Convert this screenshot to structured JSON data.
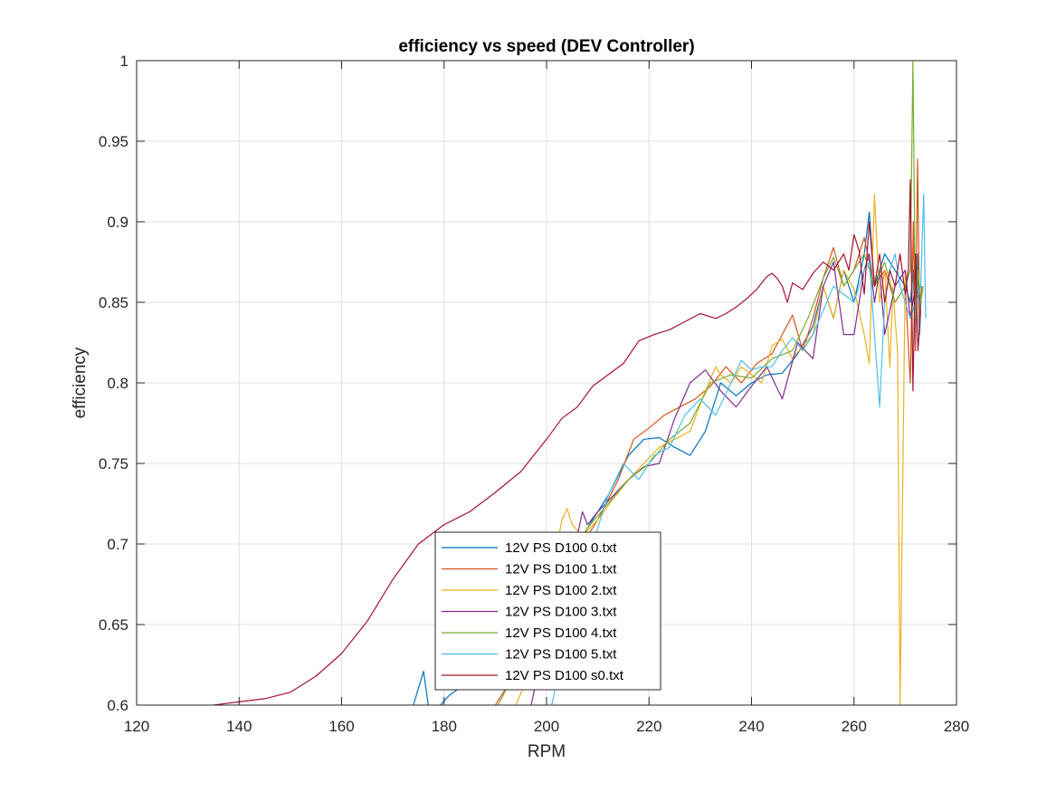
{
  "chart_data": {
    "type": "line",
    "title": "efficiency vs speed (DEV Controller)",
    "xlabel": "RPM",
    "ylabel": "efficiency",
    "xlim": [
      120,
      280
    ],
    "ylim": [
      0.6,
      1
    ],
    "xticks": [
      "120",
      "140",
      "160",
      "180",
      "200",
      "220",
      "240",
      "260",
      "280"
    ],
    "yticks": [
      "0.6",
      "0.65",
      "0.7",
      "0.75",
      "0.8",
      "0.85",
      "0.9",
      "0.95",
      "1"
    ],
    "grid": true,
    "legend_position": "bottom-center",
    "series": [
      {
        "name": "12V PS D100 0.txt",
        "color": "#0072BD",
        "x": [
          174,
          176,
          177,
          178,
          179,
          181,
          185,
          190,
          195,
          200,
          205,
          208,
          212,
          216,
          219,
          222,
          225,
          228,
          231,
          234,
          237,
          240,
          243,
          246,
          249,
          252,
          254,
          256,
          258,
          260,
          262,
          263,
          264,
          266,
          268,
          270,
          271,
          271.6,
          272,
          272.4,
          272.8,
          273.2
        ],
        "y": [
          0.6,
          0.621,
          0.598,
          0.6,
          0.599,
          0.606,
          0.615,
          0.63,
          0.648,
          0.672,
          0.69,
          0.71,
          0.73,
          0.755,
          0.765,
          0.766,
          0.76,
          0.755,
          0.77,
          0.8,
          0.792,
          0.8,
          0.805,
          0.806,
          0.818,
          0.835,
          0.86,
          0.84,
          0.87,
          0.85,
          0.88,
          0.906,
          0.86,
          0.88,
          0.87,
          0.86,
          0.85,
          0.87,
          0.82,
          0.88,
          0.83,
          0.86
        ]
      },
      {
        "name": "12V PS D100 1.txt",
        "color": "#D95319",
        "x": [
          190,
          195,
          200,
          203,
          206,
          210,
          214,
          217,
          220,
          223,
          226,
          229,
          232,
          235,
          238,
          241,
          244,
          247,
          248,
          250,
          252,
          254,
          256,
          258,
          260,
          262,
          264,
          266,
          268,
          270,
          271,
          271.6,
          272,
          272.4,
          272.8,
          273.2
        ],
        "y": [
          0.6,
          0.625,
          0.655,
          0.675,
          0.695,
          0.715,
          0.74,
          0.765,
          0.772,
          0.78,
          0.785,
          0.79,
          0.798,
          0.81,
          0.8,
          0.812,
          0.818,
          0.836,
          0.842,
          0.82,
          0.84,
          0.865,
          0.884,
          0.86,
          0.87,
          0.89,
          0.86,
          0.87,
          0.85,
          0.86,
          0.8,
          0.9,
          0.82,
          0.939,
          0.84,
          0.86
        ]
      },
      {
        "name": "12V PS D100 2.txt",
        "color": "#EDB120",
        "x": [
          194,
          197,
          200,
          203,
          204,
          205,
          207,
          210,
          213,
          216,
          219,
          222,
          225,
          228,
          231,
          233,
          234,
          236,
          238,
          240,
          242,
          244,
          246,
          248,
          250,
          252,
          254,
          256,
          258,
          260,
          262,
          263,
          264,
          265,
          266,
          267,
          267.6,
          268,
          268.5,
          269,
          270,
          271,
          272,
          273
        ],
        "y": [
          0.6,
          0.622,
          0.665,
          0.715,
          0.722,
          0.712,
          0.705,
          0.715,
          0.728,
          0.74,
          0.75,
          0.76,
          0.765,
          0.77,
          0.795,
          0.81,
          0.805,
          0.8,
          0.81,
          0.805,
          0.8,
          0.823,
          0.827,
          0.815,
          0.823,
          0.83,
          0.86,
          0.84,
          0.87,
          0.858,
          0.83,
          0.812,
          0.917,
          0.85,
          0.87,
          0.81,
          0.86,
          0.84,
          0.82,
          0.6,
          0.87,
          0.84,
          0.86,
          0.85
        ]
      },
      {
        "name": "12V PS D100 3.txt",
        "color": "#7E2F8E",
        "x": [
          197,
          200,
          203,
          206,
          207,
          208,
          210,
          213,
          216,
          219,
          222,
          225,
          228,
          231,
          234,
          237,
          240,
          243,
          246,
          249,
          252,
          254,
          256,
          258,
          260,
          261,
          262,
          263,
          264,
          265,
          266,
          268,
          270,
          271,
          272,
          273
        ],
        "y": [
          0.6,
          0.645,
          0.68,
          0.705,
          0.72,
          0.712,
          0.72,
          0.73,
          0.74,
          0.748,
          0.75,
          0.778,
          0.8,
          0.808,
          0.795,
          0.785,
          0.798,
          0.81,
          0.79,
          0.825,
          0.815,
          0.86,
          0.875,
          0.83,
          0.83,
          0.85,
          0.87,
          0.88,
          0.85,
          0.87,
          0.83,
          0.86,
          0.87,
          0.84,
          0.86,
          0.85
        ]
      },
      {
        "name": "12V PS D100 4.txt",
        "color": "#77AC30",
        "x": [
          190.5,
          193,
          196,
          200,
          204,
          208,
          212,
          216,
          220,
          224,
          228,
          232,
          236,
          240,
          244,
          248,
          251,
          254,
          256,
          258,
          260,
          262,
          264,
          266,
          268,
          270,
          271,
          271.5,
          272,
          272.5,
          273,
          273.5
        ],
        "y": [
          0.6,
          0.615,
          0.64,
          0.67,
          0.69,
          0.71,
          0.725,
          0.74,
          0.75,
          0.765,
          0.775,
          0.8,
          0.805,
          0.803,
          0.815,
          0.82,
          0.84,
          0.865,
          0.878,
          0.86,
          0.87,
          0.88,
          0.86,
          0.875,
          0.85,
          0.86,
          0.87,
          1.0,
          0.84,
          0.87,
          0.85,
          0.86
        ]
      },
      {
        "name": "12V PS D100 5.txt",
        "color": "#4DBEEE",
        "x": [
          201,
          203,
          206,
          209,
          212,
          215,
          218,
          221,
          224,
          227,
          230,
          233,
          236,
          238,
          240,
          242,
          244,
          246,
          248,
          250,
          252,
          254,
          256,
          258,
          260,
          262,
          263,
          264,
          265,
          266,
          267,
          268,
          269,
          270,
          271,
          272,
          273,
          273.6,
          274
        ],
        "y": [
          0.6,
          0.63,
          0.665,
          0.7,
          0.73,
          0.75,
          0.74,
          0.755,
          0.76,
          0.78,
          0.79,
          0.78,
          0.8,
          0.814,
          0.808,
          0.81,
          0.81,
          0.82,
          0.828,
          0.82,
          0.83,
          0.845,
          0.86,
          0.855,
          0.85,
          0.87,
          0.875,
          0.83,
          0.785,
          0.85,
          0.87,
          0.88,
          0.86,
          0.85,
          0.84,
          0.85,
          0.86,
          0.917,
          0.84
        ]
      },
      {
        "name": "12V PS D100 s0.txt",
        "color": "#A2142F",
        "x": [
          135,
          140,
          145,
          150,
          155,
          160,
          165,
          170,
          175,
          180,
          185,
          190,
          195,
          200,
          203,
          206,
          209,
          212,
          215,
          218,
          221,
          224,
          227,
          230,
          233,
          235,
          237,
          239,
          241,
          243,
          244,
          245,
          246,
          247,
          248,
          250,
          252,
          254,
          256,
          258,
          259,
          260,
          261,
          262,
          263,
          264,
          265,
          266,
          267,
          268,
          269,
          270,
          270.6,
          271,
          271.5,
          272,
          272.5,
          273
        ],
        "y": [
          0.6,
          0.602,
          0.604,
          0.608,
          0.618,
          0.632,
          0.652,
          0.678,
          0.7,
          0.712,
          0.72,
          0.732,
          0.745,
          0.765,
          0.778,
          0.785,
          0.798,
          0.805,
          0.812,
          0.826,
          0.83,
          0.833,
          0.838,
          0.843,
          0.84,
          0.843,
          0.847,
          0.852,
          0.858,
          0.866,
          0.868,
          0.865,
          0.86,
          0.85,
          0.862,
          0.858,
          0.868,
          0.875,
          0.87,
          0.88,
          0.87,
          0.892,
          0.882,
          0.855,
          0.9,
          0.86,
          0.88,
          0.85,
          0.87,
          0.86,
          0.88,
          0.855,
          0.87,
          0.926,
          0.795,
          0.88,
          0.82,
          0.845
        ]
      }
    ]
  }
}
